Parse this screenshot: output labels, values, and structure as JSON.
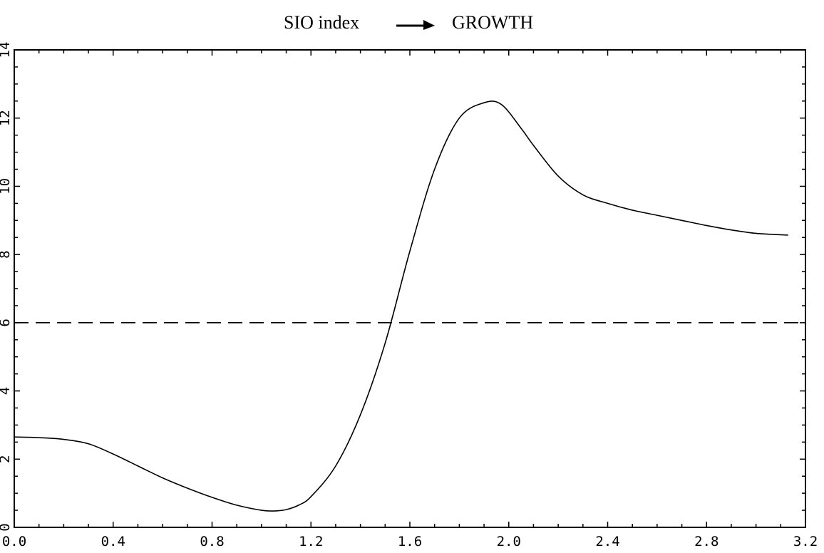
{
  "chart_data": {
    "type": "line",
    "title_left": "SIO index",
    "title_right": "GROWTH",
    "xlabel": "",
    "ylabel": "",
    "xlim": [
      0,
      3.2
    ],
    "ylim": [
      0,
      14
    ],
    "xticks": [
      "0.0",
      "0.4",
      "0.8",
      "1.2",
      "1.6",
      "2.0",
      "2.4",
      "2.8",
      "3.2"
    ],
    "yticks": [
      "0",
      "2",
      "4",
      "6",
      "8",
      "10",
      "12",
      "14"
    ],
    "grid": false,
    "series": [
      {
        "style": "solid",
        "x": [
          0.0,
          0.1,
          0.2,
          0.3,
          0.4,
          0.5,
          0.6,
          0.7,
          0.8,
          0.9,
          1.0,
          1.05,
          1.1,
          1.15,
          1.2,
          1.3,
          1.4,
          1.5,
          1.6,
          1.7,
          1.8,
          1.9,
          1.97,
          2.05,
          2.1,
          2.2,
          2.3,
          2.4,
          2.5,
          2.6,
          2.7,
          2.8,
          2.9,
          3.0,
          3.1,
          3.13
        ],
        "y": [
          2.65,
          2.63,
          2.58,
          2.45,
          2.15,
          1.8,
          1.45,
          1.15,
          0.88,
          0.65,
          0.5,
          0.48,
          0.52,
          0.65,
          0.9,
          1.8,
          3.3,
          5.4,
          8.1,
          10.5,
          12.0,
          12.45,
          12.4,
          11.7,
          11.2,
          10.3,
          9.75,
          9.5,
          9.3,
          9.15,
          9.0,
          8.85,
          8.72,
          8.62,
          8.58,
          8.57
        ]
      },
      {
        "style": "dashed",
        "x": [
          0.0,
          3.2
        ],
        "y": [
          6.0,
          6.0
        ]
      }
    ]
  }
}
